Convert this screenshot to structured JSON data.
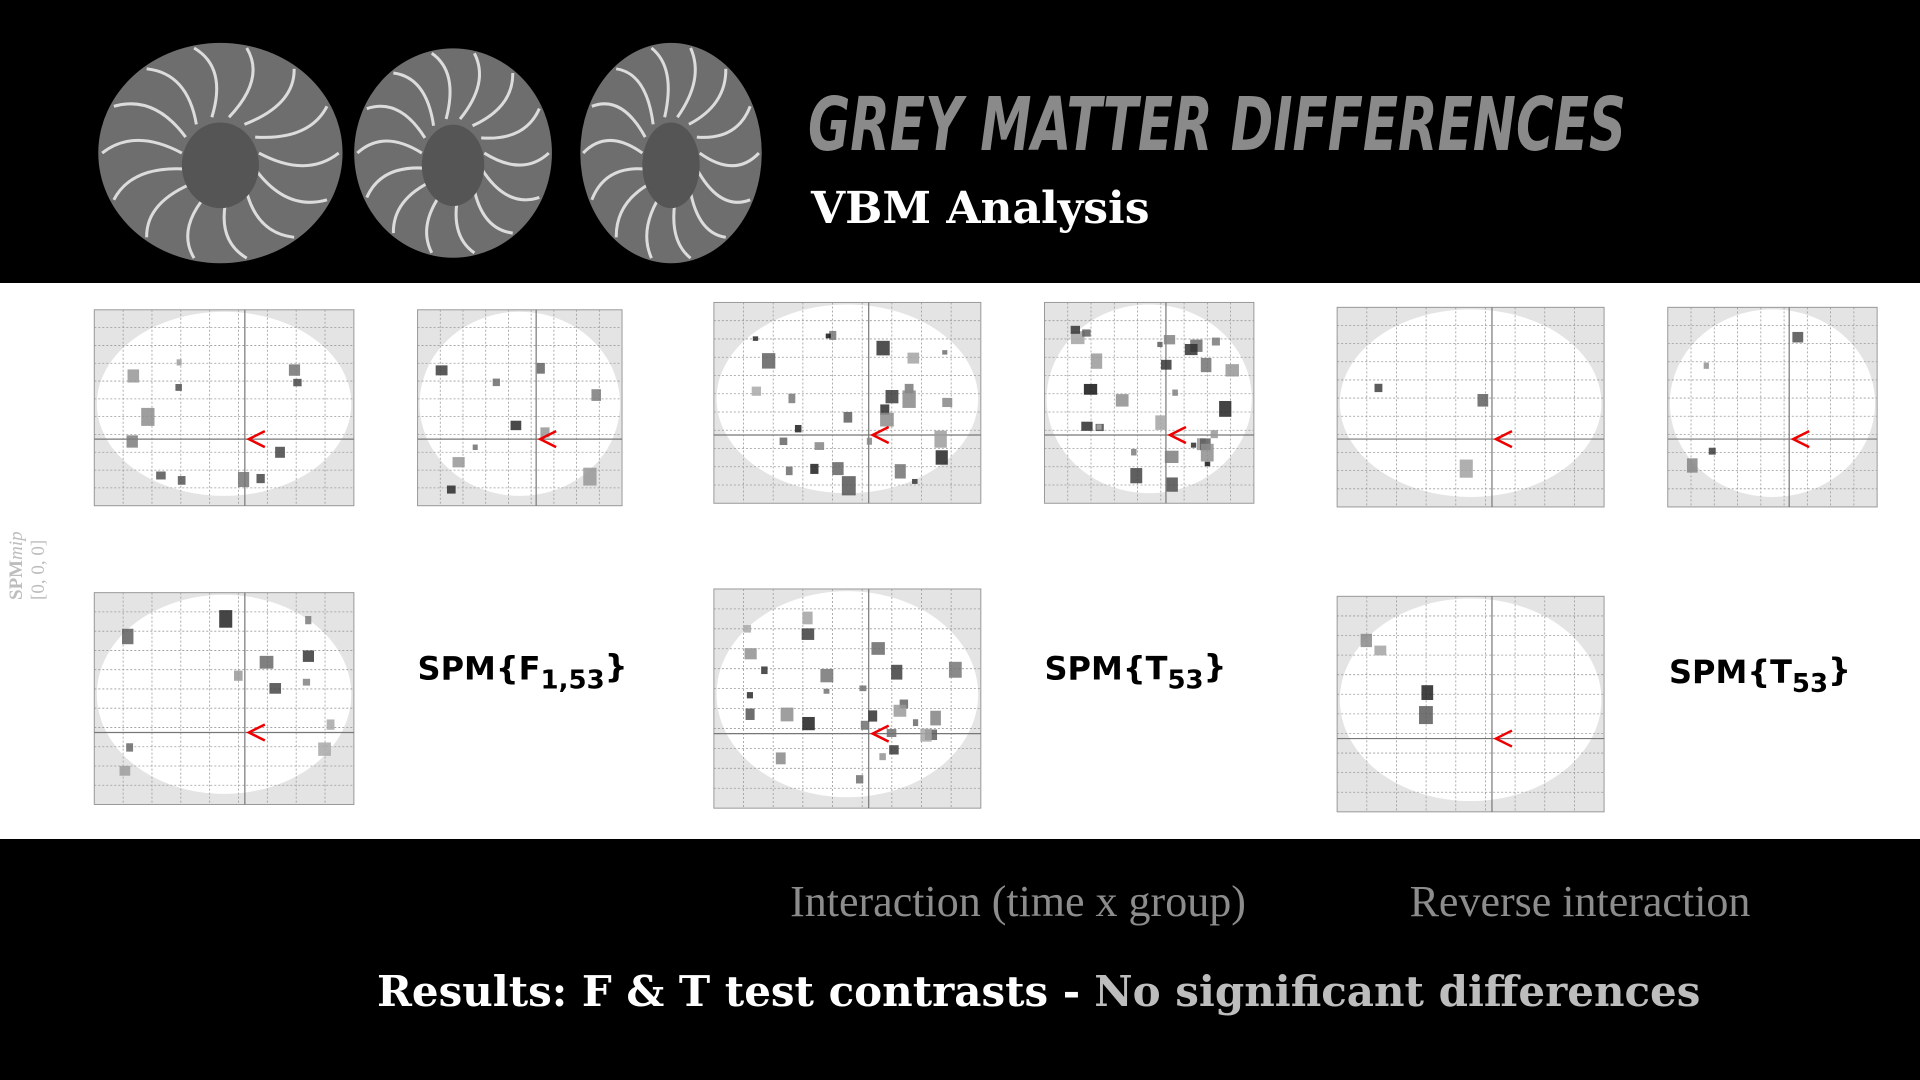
{
  "header": {
    "title": "GREY MATTER DIFFERENCES",
    "subtitle": "VBM Analysis"
  },
  "side_label": {
    "name": "SPM",
    "modifier": "mip",
    "coordinates": "[0, 0, 0]"
  },
  "contrasts": [
    {
      "stat": "SPM{F",
      "df": "1,53",
      "close": "}"
    },
    {
      "stat": "SPM{T",
      "df": "53",
      "close": "}"
    },
    {
      "stat": "SPM{T",
      "df": "53",
      "close": "}"
    }
  ],
  "captions": [
    "Interaction (time x group)",
    "Reverse interaction"
  ],
  "footer": {
    "lead": "Results: F & T test contrasts -",
    "highlight": "No significant differences"
  }
}
